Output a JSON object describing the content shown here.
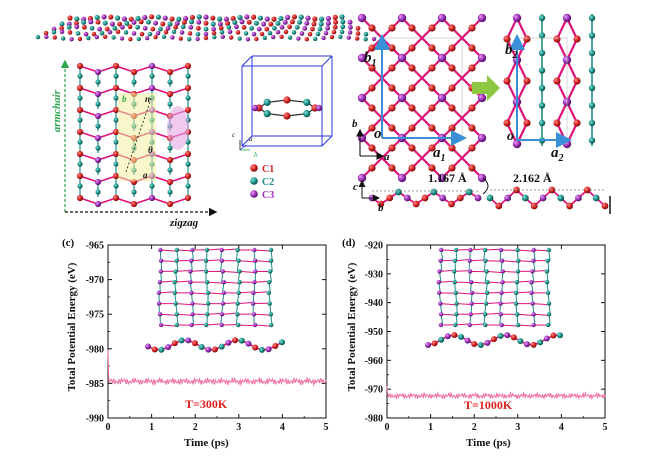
{
  "top_left": {
    "direction_vertical": "armchair",
    "direction_horizontal": "zigzag",
    "cell_labels": {
      "b": "b",
      "n": "n",
      "theta": "θ",
      "a": "a"
    }
  },
  "legend": {
    "items": [
      {
        "label": "C1",
        "color": "#d51f1f"
      },
      {
        "label": "C2",
        "color": "#1d8f86"
      },
      {
        "label": "C3",
        "color": "#9a2bb5"
      }
    ],
    "axis_labels": {
      "a": "a",
      "b": "b",
      "c": "c"
    }
  },
  "top_right": {
    "vectors": {
      "b1": "b",
      "b1_sub": "1",
      "a1": "a",
      "a1_sub": "1",
      "b2": "b",
      "b2_sub": "2",
      "a2": "a",
      "a2_sub": "2",
      "origin": "o",
      "b_axis": "b",
      "a_axis": "a"
    },
    "side_axes": {
      "c": "c",
      "b": "b"
    },
    "heights": [
      "1.167 Å",
      "2.162 Å"
    ]
  },
  "colors": {
    "c1": "#d51f1f",
    "c2": "#1d8f86",
    "c3": "#9a2bb5",
    "bond_red": "#e0117a",
    "trace": "#f06aa0",
    "arrow_green": "#8dc63f",
    "vector_blue": "#3a8fd6"
  },
  "chart_data": [
    {
      "type": "line",
      "panel": "(c)",
      "xlabel": "Time (ps)",
      "ylabel": "Total Potential Energy (eV)",
      "xlim": [
        0,
        5
      ],
      "ylim": [
        -990,
        -965
      ],
      "xticks": [
        "0",
        "1",
        "2",
        "3",
        "4",
        "5"
      ],
      "yticks": [
        "-965",
        "-970",
        "-975",
        "-980",
        "-985",
        "-990"
      ],
      "annotation": "T=300K",
      "series": [
        {
          "mean": -984.7,
          "amplitude": 0.5,
          "initial": -980.2
        }
      ]
    },
    {
      "type": "line",
      "panel": "(d)",
      "xlabel": "Time (ps)",
      "ylabel": "Total Potential Energy (eV)",
      "xlim": [
        0,
        5
      ],
      "ylim": [
        -980,
        -920
      ],
      "xticks": [
        "0",
        "1",
        "2",
        "3",
        "4",
        "5"
      ],
      "yticks": [
        "-920",
        "-930",
        "-940",
        "-950",
        "-960",
        "-970",
        "-980"
      ],
      "annotation": "T=1000K",
      "series": [
        {
          "mean": -972.3,
          "amplitude": 1.0,
          "initial": -969.0
        }
      ]
    }
  ]
}
